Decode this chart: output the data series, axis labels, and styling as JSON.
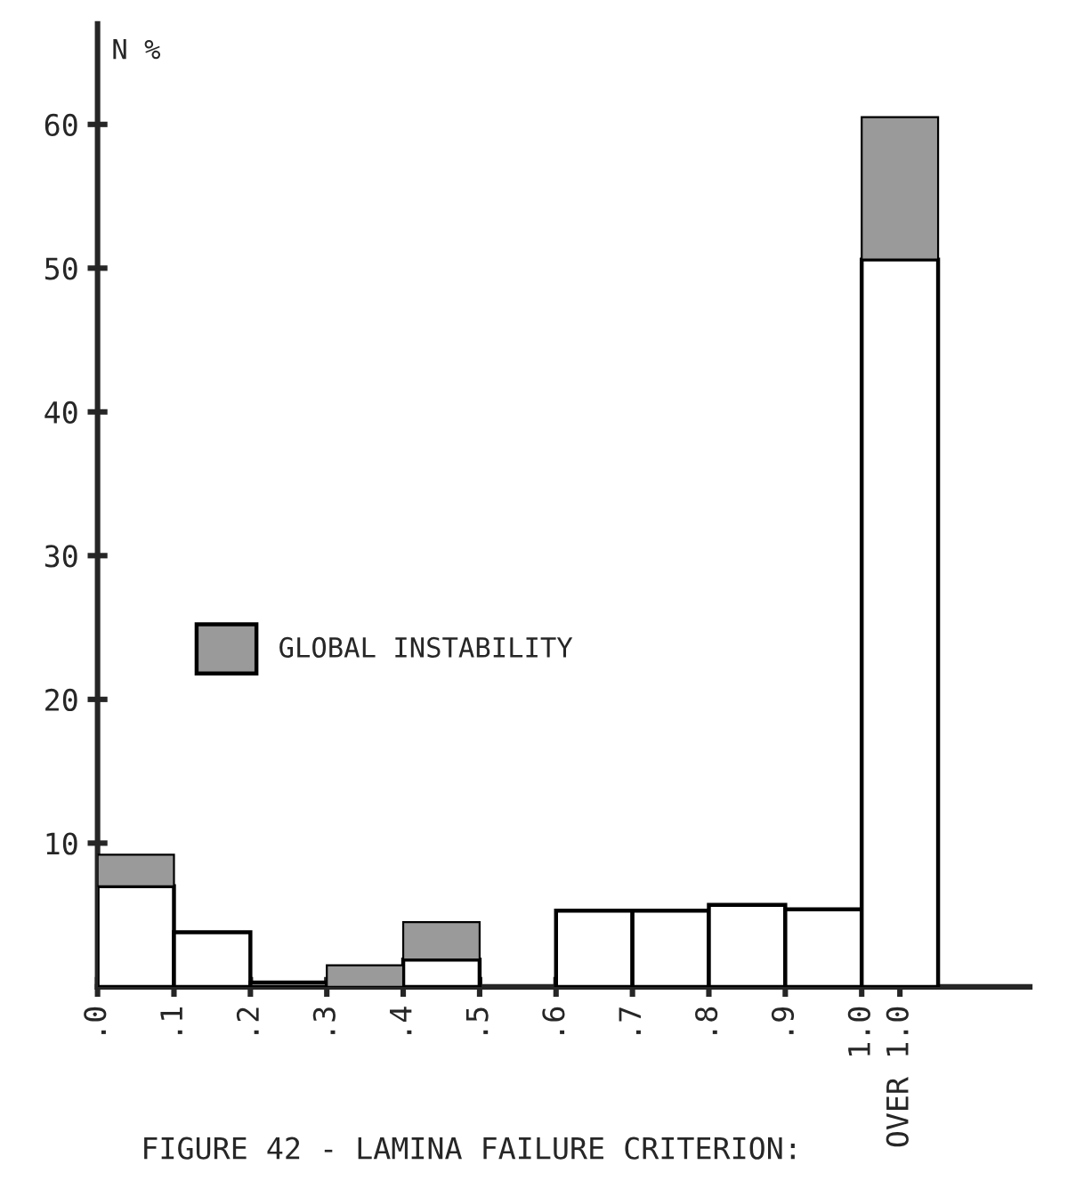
{
  "chart_data": {
    "type": "bar",
    "stacked": true,
    "x": [
      0.05,
      0.15,
      0.25,
      0.35,
      0.45,
      0.55,
      0.65,
      0.75,
      0.85,
      0.95,
      1.05
    ],
    "series": [
      {
        "color": "#ffffff",
        "values": [
          7.0,
          3.8,
          0.3,
          null,
          1.9,
          null,
          5.3,
          5.3,
          5.7,
          5.4,
          50.6
        ]
      },
      {
        "name": "GLOBAL INSTABILITY",
        "color": "#9a9a9a",
        "values": [
          2.2,
          null,
          null,
          1.5,
          2.6,
          null,
          null,
          null,
          null,
          null,
          9.9
        ]
      }
    ],
    "ylabel": "N %",
    "xlim": [
      0,
      1.22
    ],
    "ylim": [
      0,
      67
    ],
    "xticks": [
      {
        "value": 0,
        "label": ".0"
      },
      {
        "value": 0.1,
        "label": ".1"
      },
      {
        "value": 0.2,
        "label": ".2"
      },
      {
        "value": 0.3,
        "label": ".3"
      },
      {
        "value": 0.4,
        "label": ".4"
      },
      {
        "value": 0.5,
        "label": ".5"
      },
      {
        "value": 0.6,
        "label": ".6"
      },
      {
        "value": 0.7,
        "label": ".7"
      },
      {
        "value": 0.8,
        "label": ".8"
      },
      {
        "value": 0.9,
        "label": ".9"
      },
      {
        "value": 1.0,
        "label": "1.0"
      },
      {
        "value": 1.05,
        "label": "OVER 1.0"
      }
    ],
    "yticks": [
      10,
      20,
      30,
      40,
      50,
      60
    ],
    "legend": "left",
    "annotations": [
      "FIGURE 42 - LAMINA FAILURE CRITERION:"
    ]
  }
}
